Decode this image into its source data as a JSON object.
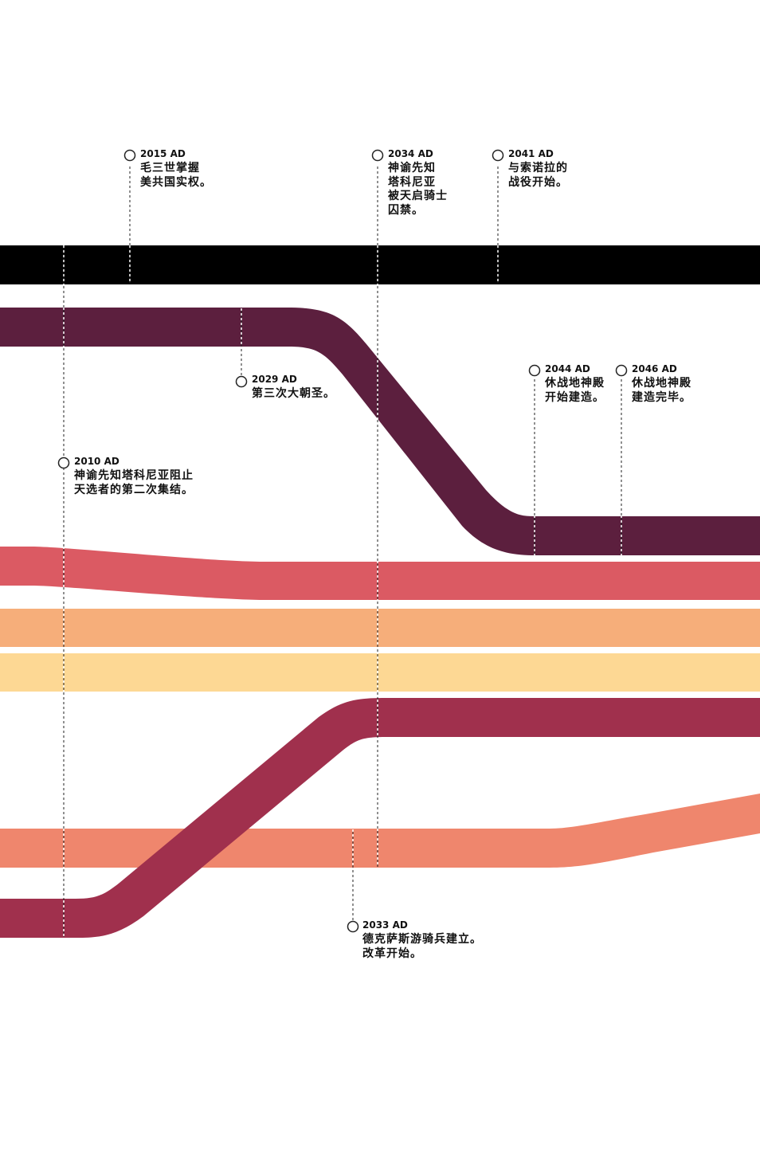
{
  "colors": {
    "black_band": "#000000",
    "plum_band": "#5c1f3e",
    "coral_band": "#db5a63",
    "orange_band": "#f6ae7a",
    "yellow_band": "#fdd894",
    "crimson_band": "#a0304d",
    "salmon_band": "#ef866d",
    "marker": "#222222"
  },
  "events": [
    {
      "id": "e2015",
      "year": "2015 AD",
      "text": "毛三世掌握\n美共国实权。"
    },
    {
      "id": "e2034",
      "year": "2034 AD",
      "text": "神谕先知\n塔科尼亚\n被天启骑士\n囚禁。"
    },
    {
      "id": "e2041",
      "year": "2041 AD",
      "text": "与索诺拉的\n战役开始。"
    },
    {
      "id": "e2029",
      "year": "2029 AD",
      "text": "第三次大朝圣。"
    },
    {
      "id": "e2044",
      "year": "2044 AD",
      "text": "休战地神殿\n开始建造。"
    },
    {
      "id": "e2046",
      "year": "2046 AD",
      "text": "休战地神殿\n建造完毕。"
    },
    {
      "id": "e2010",
      "year": "2010 AD",
      "text": "神谕先知塔科尼亚阻止\n天选者的第二次集结。"
    },
    {
      "id": "e2033",
      "year": "2033 AD",
      "text": "德克萨斯游骑兵建立。\n改革开始。"
    }
  ]
}
